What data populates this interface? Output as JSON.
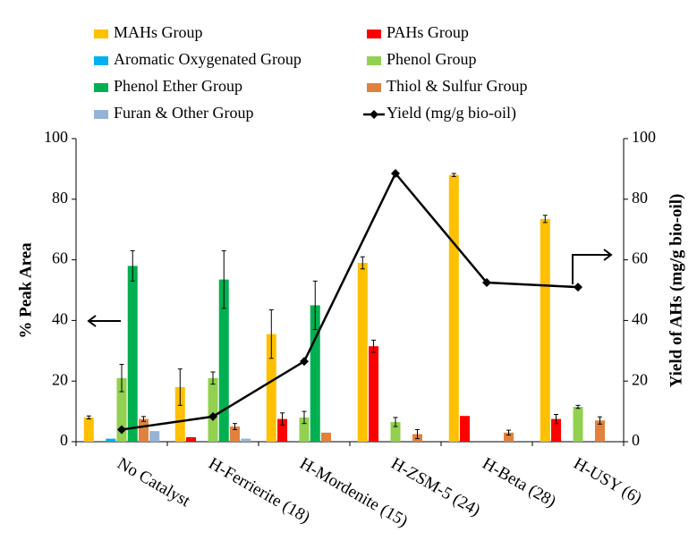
{
  "chart_data": {
    "type": "bar",
    "categories": [
      "No Catalyst",
      "H-Ferrierite (18)",
      "H-Mordenite (15)",
      "H-ZSM-5 (24)",
      "H-Beta (28)",
      "H-USY (6)"
    ],
    "series": [
      {
        "name": "MAHs Group",
        "color": "#ffc000",
        "values": [
          8,
          18,
          35.5,
          59,
          88,
          73.5
        ],
        "errors": [
          0.5,
          6,
          8,
          2,
          0.5,
          1.2
        ]
      },
      {
        "name": "PAHs Group",
        "color": "#ff0000",
        "values": [
          0,
          1.5,
          7.5,
          31.5,
          8.5,
          7.5
        ],
        "errors": [
          null,
          null,
          2,
          2,
          null,
          1.5
        ]
      },
      {
        "name": "Aromatic Oxygenated Group",
        "color": "#00b0f0",
        "values": [
          1,
          0,
          0,
          0,
          0,
          0
        ],
        "errors": [
          null,
          null,
          null,
          null,
          null,
          null
        ]
      },
      {
        "name": "Phenol Group",
        "color": "#92d050",
        "values": [
          21,
          21,
          8,
          6.5,
          0,
          11.5
        ],
        "errors": [
          4.5,
          2,
          2,
          1.5,
          null,
          0.5
        ]
      },
      {
        "name": "Phenol Ether Group",
        "color": "#00b050",
        "values": [
          58,
          53.5,
          45,
          0,
          0,
          0
        ],
        "errors": [
          5,
          9.5,
          8,
          null,
          null,
          null
        ]
      },
      {
        "name": "Thiol & Sulfur Group",
        "color": "#e0823d",
        "values": [
          7.5,
          5,
          3,
          2.5,
          3,
          7
        ],
        "errors": [
          0.8,
          1,
          null,
          1.5,
          0.8,
          1.2
        ]
      },
      {
        "name": "Furan & Other Group",
        "color": "#95b3d7",
        "values": [
          3.5,
          1,
          0,
          0,
          0,
          0
        ],
        "errors": [
          null,
          null,
          null,
          null,
          null,
          null
        ]
      },
      {
        "name": "Yield (mg/g bio-oil)",
        "color": "#000000",
        "type": "line",
        "axis": "y2",
        "values": [
          4,
          8.3,
          26.5,
          88.5,
          52.5,
          51
        ]
      }
    ],
    "ylabel": "% Peak Area",
    "y2label": "Yield of AHs (mg/g bio-oil)",
    "ylim": [
      0,
      100
    ],
    "yticks": [
      0,
      20,
      40,
      60,
      80,
      100
    ],
    "y2lim": [
      0,
      100
    ],
    "y2ticks": [
      0,
      20,
      40,
      60,
      80,
      100
    ],
    "grid": false
  }
}
